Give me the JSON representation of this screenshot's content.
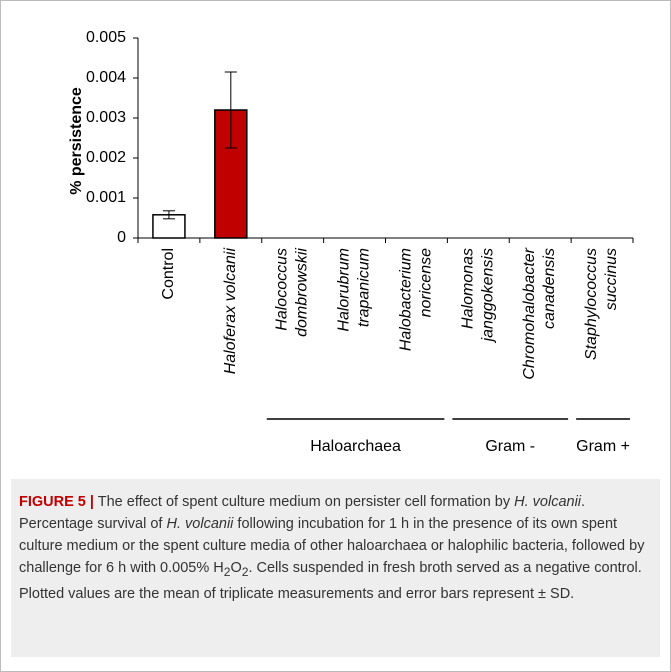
{
  "chart_data": {
    "type": "bar",
    "ylabel": "% persistence",
    "categories": [
      [
        "Control"
      ],
      [
        "Haloferax volcanii"
      ],
      [
        "Halococcus",
        "dombrowskii"
      ],
      [
        "Halorubrum",
        "trapanicum"
      ],
      [
        "Halobacterium",
        "noricense"
      ],
      [
        "Halomonas",
        "janggokensis"
      ],
      [
        "Chromohalobacter",
        "canadensis"
      ],
      [
        "Staphylococcus",
        "succinus"
      ]
    ],
    "values": [
      0.00058,
      0.0032,
      0,
      0,
      0,
      0,
      0,
      0
    ],
    "errors": [
      0.0001,
      0.00095,
      0,
      0,
      0,
      0,
      0,
      0
    ],
    "colors": [
      "#ffffff",
      "#c00000",
      "#ffffff",
      "#ffffff",
      "#ffffff",
      "#ffffff",
      "#ffffff",
      "#ffffff"
    ],
    "ylim": [
      0,
      0.005
    ],
    "yticks": [
      0,
      0.001,
      0.002,
      0.003,
      0.004,
      0.005
    ],
    "groups": [
      {
        "label": "Haloarchaea",
        "first": 2,
        "last": 4
      },
      {
        "label": "Gram -",
        "first": 5,
        "last": 6
      },
      {
        "label": "Gram +",
        "first": 7,
        "last": 7
      }
    ]
  },
  "caption": {
    "label": "FIGURE 5 |",
    "runs": [
      {
        "text": " The effect of spent culture medium on persister cell formation by "
      },
      {
        "text": "H. volcanii",
        "italic": true
      },
      {
        "text": ". Percentage survival of "
      },
      {
        "text": "H. volcanii",
        "italic": true
      },
      {
        "text": " following incubation for 1 h in the presence of its own spent culture medium or the spent culture media of other haloarchaea or halophilic bacteria, followed by challenge for 6 h with 0.005% H"
      },
      {
        "text": "2",
        "sub": true
      },
      {
        "text": "O"
      },
      {
        "text": "2",
        "sub": true
      },
      {
        "text": ". Cells suspended in fresh broth served as a negative control. Plotted values are the mean of triplicate measurements and error bars represent ± SD."
      }
    ]
  }
}
